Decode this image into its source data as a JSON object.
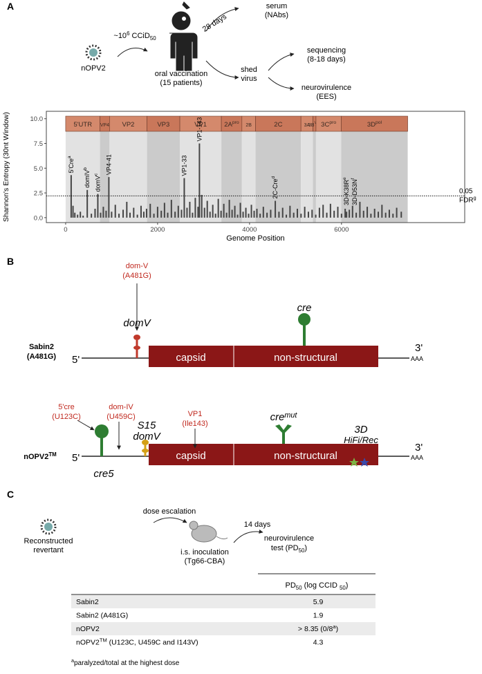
{
  "panel_a": {
    "letter": "A",
    "dose": [
      "~10",
      {
        "sup": "6"
      },
      " CCiD",
      {
        "sub": "50"
      }
    ],
    "virus": "nOPV2",
    "vaccination": [
      "oral vaccination",
      "(15 patients)"
    ],
    "days": "28 days",
    "serum": [
      "serum",
      "(NAbs)"
    ],
    "shed": [
      "shed",
      "virus"
    ],
    "sequencing": [
      "sequencing",
      "(8-18 days)"
    ],
    "neurovirulence": [
      "neurovirulence",
      "(EES)"
    ]
  },
  "chart_data": {
    "type": "bar",
    "x": [
      120,
      160,
      200,
      260,
      320,
      380,
      470,
      560,
      640,
      700,
      760,
      820,
      880,
      940,
      1000,
      1080,
      1160,
      1250,
      1330,
      1400,
      1480,
      1560,
      1640,
      1700,
      1760,
      1840,
      1920,
      2000,
      2080,
      2150,
      2220,
      2300,
      2380,
      2450,
      2520,
      2580,
      2640,
      2700,
      2760,
      2820,
      2880,
      2910,
      2960,
      3020,
      3080,
      3140,
      3200,
      3260,
      3320,
      3380,
      3440,
      3500,
      3560,
      3620,
      3680,
      3740,
      3800,
      3860,
      3920,
      3980,
      4040,
      4100,
      4160,
      4230,
      4300,
      4380,
      4460,
      4560,
      4640,
      4720,
      4800,
      4880,
      4960,
      5040,
      5120,
      5200,
      5280,
      5360,
      5440,
      5520,
      5600,
      5680,
      5760,
      5840,
      5920,
      6000,
      6080,
      6110,
      6170,
      6240,
      6320,
      6400,
      6480,
      6560,
      6640,
      6720,
      6800,
      6880,
      6960,
      7040,
      7120,
      7200,
      7300
    ],
    "values": [
      4.3,
      1.2,
      0.5,
      0.3,
      0.6,
      0.2,
      2.8,
      0.4,
      0.9,
      2.4,
      0.5,
      1.1,
      0.7,
      4.1,
      0.6,
      1.3,
      0.4,
      0.8,
      1.6,
      0.5,
      1.0,
      0.3,
      1.2,
      0.6,
      0.9,
      1.4,
      0.4,
      1.1,
      0.7,
      1.5,
      0.5,
      1.8,
      0.6,
      1.2,
      0.8,
      4.0,
      1.0,
      1.6,
      0.5,
      2.0,
      1.1,
      7.5,
      2.3,
      1.0,
      1.7,
      0.6,
      1.3,
      0.4,
      1.9,
      0.7,
      1.4,
      0.5,
      1.8,
      0.8,
      1.2,
      0.3,
      1.5,
      0.6,
      1.0,
      0.4,
      1.3,
      0.7,
      0.9,
      0.4,
      1.1,
      0.5,
      0.8,
      1.7,
      0.6,
      1.0,
      0.3,
      1.2,
      0.5,
      0.9,
      0.4,
      1.1,
      0.6,
      0.8,
      0.3,
      1.0,
      1.3,
      0.5,
      1.4,
      0.7,
      1.1,
      0.4,
      0.9,
      0.6,
      0.8,
      1.2,
      0.5,
      1.6,
      0.7,
      1.1,
      0.4,
      0.9,
      0.6,
      1.3,
      0.5,
      0.8,
      0.4,
      1.0,
      0.6
    ],
    "color": "#444444",
    "xlim": [
      -420,
      8680
    ],
    "ylim": [
      -0.5,
      10.75
    ],
    "xticks": [
      0,
      2000,
      4000,
      6000
    ],
    "yticks": [
      {
        "value": 0,
        "label": "0.0"
      },
      2.5,
      {
        "value": 5,
        "label": "5.0"
      },
      7.5,
      {
        "value": 10,
        "label": "10.0"
      }
    ],
    "xlabel": "Genome Position",
    "ylabel": "Shannon's Entropy (30nt Window)",
    "regions": [
      {
        "label": "5'UTR",
        "start": 0,
        "end": 747
      },
      {
        "label": "VP4",
        "start": 747,
        "end": 954
      },
      {
        "label": "VP2",
        "start": 954,
        "end": 1770
      },
      {
        "label": "VP3",
        "start": 1770,
        "end": 2484
      },
      {
        "label": "VP1",
        "start": 2484,
        "end": 3387
      },
      {
        "label": [
          "2A",
          {
            "sup": "pro"
          }
        ],
        "start": 3387,
        "end": 3834
      },
      {
        "label": "2B",
        "start": 3834,
        "end": 4131
      },
      {
        "label": "2C",
        "start": 4131,
        "end": 5118
      },
      {
        "label": "3A",
        "start": 5118,
        "end": 5379
      },
      {
        "label": [
          "3B",
          {
            "sup": "Vpg"
          }
        ],
        "start": 5379,
        "end": 5445
      },
      {
        "label": [
          "3C",
          {
            "sup": "pro"
          }
        ],
        "start": 5445,
        "end": 5994
      },
      {
        "label": [
          "3D",
          {
            "sup": "pol"
          }
        ],
        "start": 5994,
        "end": 7440
      }
    ],
    "annotations": [
      [
        "5'Cre",
        {
          "sup": "a"
        }
      ],
      [
        "domIV",
        {
          "sup": "b"
        }
      ],
      [
        "domV",
        {
          "sup": "c"
        }
      ],
      "VP4-41",
      "VP1-33",
      "VP1-143",
      [
        "2C-Cre",
        {
          "sup": "d"
        }
      ],
      [
        "3D-K38R",
        {
          "sup": "e"
        }
      ],
      [
        "3D-D53N",
        {
          "sup": "f"
        }
      ]
    ],
    "threshold": 2.2,
    "threshold_label": [
      "0.05",
      [
        "FDR",
        {
          "sup": "g"
        }
      ]
    ]
  },
  "panel_b": {
    "letter": "B",
    "sabin": {
      "name": [
        "Sabin2",
        "(A481G)"
      ],
      "mutation": [
        "dom-V",
        "(A481G)"
      ],
      "domv": "domV",
      "cre": "cre",
      "five": "5'",
      "three": "3'",
      "polya": "AAA",
      "capsid": "capsid",
      "nonstructural": "non-structural"
    },
    "nopv": {
      "name": [
        "nOPV2",
        {
          "sup": "TM"
        }
      ],
      "cre5_mut": [
        "5'cre",
        "(U123C)"
      ],
      "domiv_mut": [
        "dom-IV",
        "(U459C)"
      ],
      "s15": [
        "S15",
        "domV"
      ],
      "vp1_mut": [
        "VP1",
        "(Ile143)"
      ],
      "cremut": [
        "cre",
        {
          "sup": "mut"
        }
      ],
      "d3": [
        "3D",
        "HiFi/Rec"
      ],
      "cre5": "cre5",
      "five": "5'",
      "three": "3'",
      "polya": "AAA",
      "capsid": "capsid",
      "nonstructural": "non-structural"
    }
  },
  "panel_c": {
    "letter": "C",
    "revertant": [
      "Reconstructed",
      "revertant"
    ],
    "dose": "dose escalation",
    "inoculation": [
      "i.s. inoculation",
      "(Tg66-CBA)"
    ],
    "days": "14 days",
    "test": [
      "neurovirulence",
      [
        "test (PD",
        {
          "sub": "50"
        },
        ")"
      ]
    ]
  },
  "table": {
    "header": [
      "PD",
      {
        "sub": "50"
      },
      " (log CCID ",
      {
        "sub": "50"
      },
      ")"
    ],
    "rows": [
      [
        "Sabin2",
        "5.9"
      ],
      [
        "Sabin2 (A481G)",
        "1.9"
      ],
      [
        "nOPV2",
        [
          "> 8.35 (0/8",
          {
            "sup": "a"
          },
          ")"
        ]
      ],
      [
        [
          "nOPV2",
          {
            "sup": "TM"
          },
          " (U123C, U459C and I143V)"
        ],
        "4.3"
      ]
    ],
    "footnote": [
      {
        "sup": "a"
      },
      "paralyzed/total at the highest dose"
    ]
  }
}
